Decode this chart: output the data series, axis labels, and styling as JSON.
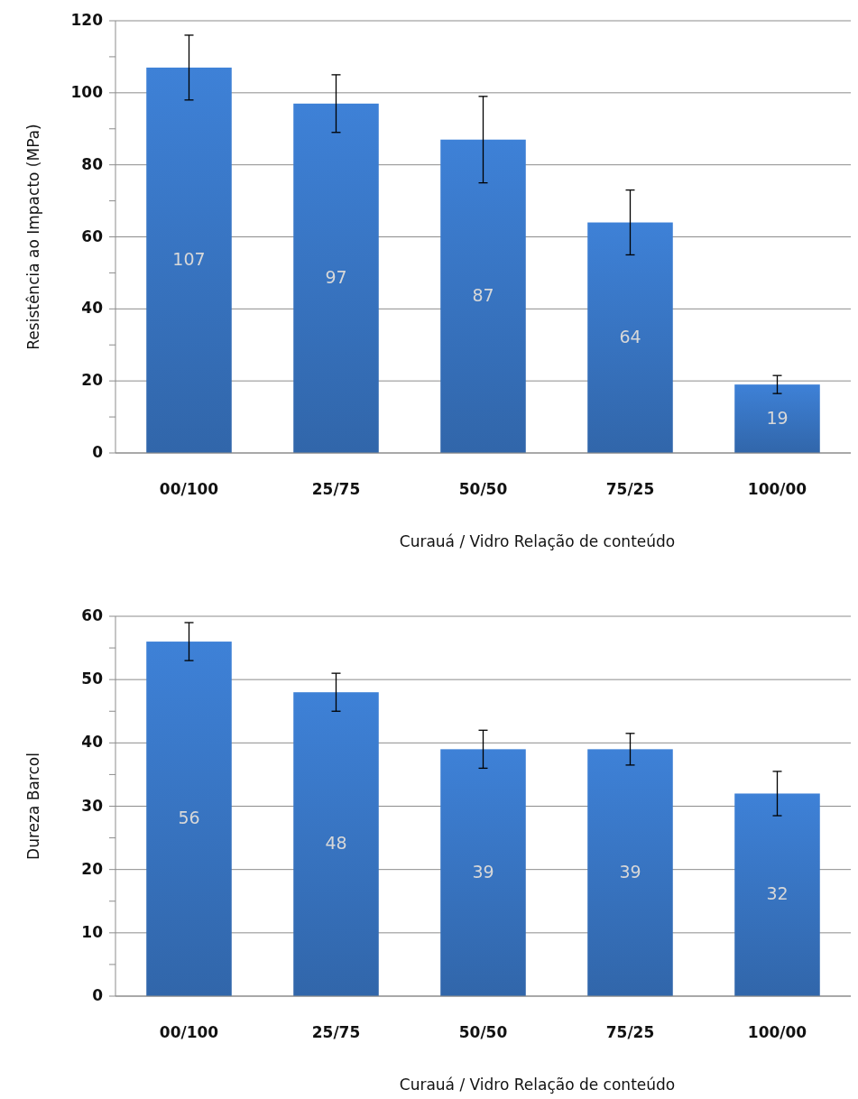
{
  "chart_data": [
    {
      "type": "bar",
      "categories": [
        "00/100",
        "25/75",
        "50/50",
        "75/25",
        "100/00"
      ],
      "values": [
        107,
        97,
        87,
        64,
        19
      ],
      "errors": [
        9,
        8,
        12,
        9,
        2.5
      ],
      "color": "#3a78c8",
      "xlabel": "Curauá / Vidro   Relação de conteúdo",
      "ylabel": "Resistência ao Impacto (MPa)",
      "ylim": [
        0,
        120
      ],
      "yticks": [
        0,
        {
          "value": 10,
          "label": null
        },
        20,
        {
          "value": 30,
          "label": null
        },
        40,
        {
          "value": 50,
          "label": null
        },
        60,
        {
          "value": 70,
          "label": null
        },
        80,
        {
          "value": 90,
          "label": null
        },
        100,
        {
          "value": 110,
          "label": null
        },
        120
      ],
      "grid": "y",
      "data_labels": true
    },
    {
      "type": "bar",
      "categories": [
        "00/100",
        "25/75",
        "50/50",
        "75/25",
        "100/00"
      ],
      "values": [
        56,
        48,
        39,
        39,
        32
      ],
      "errors": [
        3,
        3,
        3,
        2.5,
        3.5
      ],
      "color": "#3a78c8",
      "xlabel": "Curauá / Vidro   Relação de conteúdo",
      "ylabel": "Dureza Barcol",
      "ylim": [
        0,
        60
      ],
      "yticks": [
        0,
        {
          "value": 5,
          "label": null
        },
        10,
        {
          "value": 15,
          "label": null
        },
        20,
        {
          "value": 25,
          "label": null
        },
        30,
        {
          "value": 35,
          "label": null
        },
        40,
        {
          "value": 45,
          "label": null
        },
        50,
        {
          "value": 55,
          "label": null
        },
        60
      ],
      "grid": "y",
      "data_labels": true
    }
  ]
}
